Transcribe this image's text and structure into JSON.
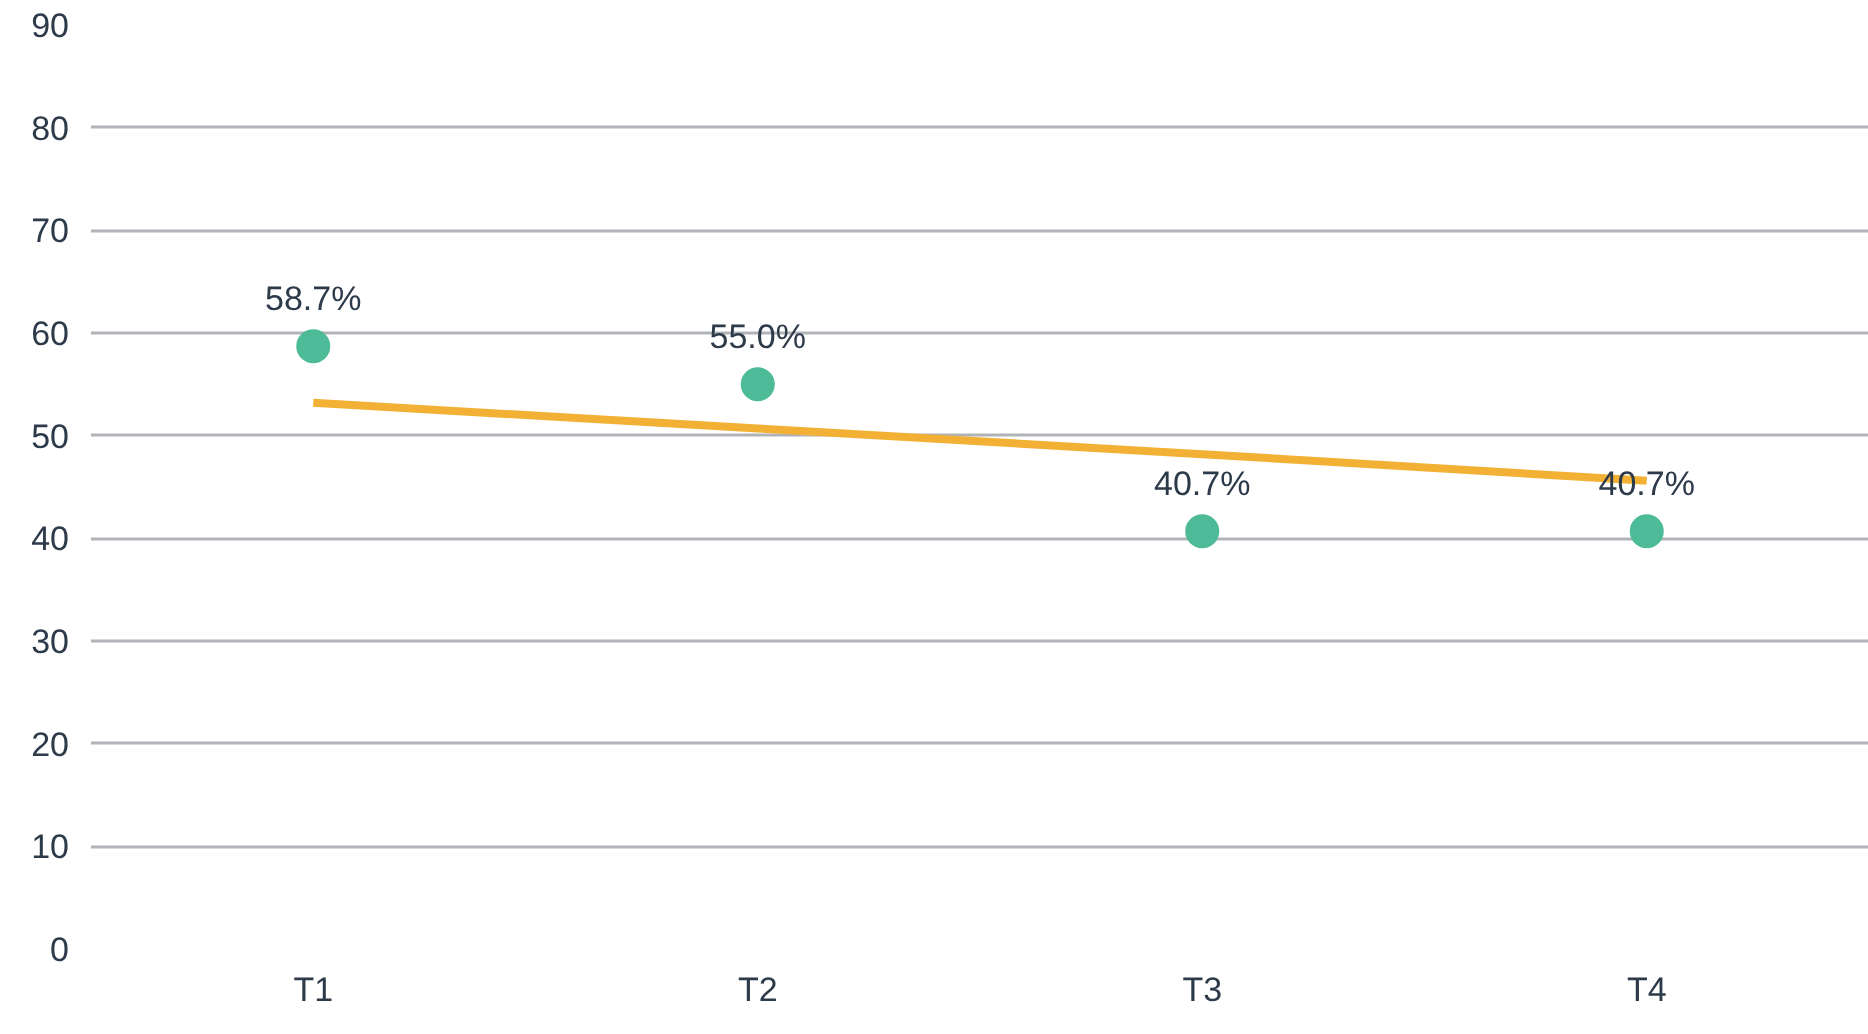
{
  "chart_data": {
    "type": "scatter",
    "categories": [
      "T1",
      "T2",
      "T3",
      "T4"
    ],
    "series": [
      {
        "color": "#4dbb97",
        "values": [
          58.7,
          55.0,
          40.7,
          40.7
        ],
        "value_labels": [
          "58.7%",
          "55.0%",
          "40.7%",
          "40.7%"
        ],
        "marker": "circle"
      },
      {
        "type": "line",
        "color": "#f2b134",
        "values": [
          53.2,
          50.7,
          48.2,
          45.6
        ],
        "line_style": "solid"
      }
    ],
    "ylim": [
      0,
      90
    ],
    "yticks": [
      0,
      10,
      20,
      30,
      40,
      50,
      60,
      70,
      80,
      90
    ],
    "grid": "y"
  }
}
